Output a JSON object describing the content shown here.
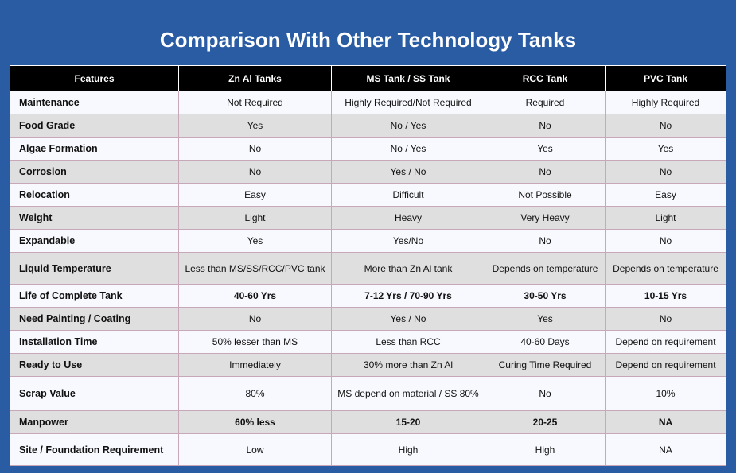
{
  "title": "Comparison With Other Technology Tanks",
  "headers": [
    "Features",
    "Zn Al Tanks",
    "MS Tank / SS Tank",
    "RCC Tank",
    "PVC Tank"
  ],
  "rows": [
    [
      "Maintenance",
      "Not Required",
      "Highly Required/Not Required",
      "Required",
      "Highly Required"
    ],
    [
      "Food Grade",
      "Yes",
      "No / Yes",
      "No",
      "No"
    ],
    [
      "Algae Formation",
      "No",
      "No / Yes",
      "Yes",
      "Yes"
    ],
    [
      "Corrosion",
      "No",
      "Yes / No",
      "No",
      "No"
    ],
    [
      "Relocation",
      "Easy",
      "Difficult",
      "Not Possible",
      "Easy"
    ],
    [
      "Weight",
      "Light",
      "Heavy",
      "Very Heavy",
      "Light"
    ],
    [
      "Expandable",
      "Yes",
      "Yes/No",
      "No",
      "No"
    ],
    [
      "Liquid Temperature",
      "Less than MS/SS/RCC/PVC tank",
      "More than Zn Al tank",
      "Depends on temperature",
      "Depends on temperature"
    ],
    [
      "Life of Complete Tank",
      "40-60 Yrs",
      "7-12 Yrs / 70-90 Yrs",
      "30-50 Yrs",
      "10-15 Yrs"
    ],
    [
      "Need Painting / Coating",
      "No",
      "Yes / No",
      "Yes",
      "No"
    ],
    [
      "Installation Time",
      "50% lesser than MS",
      "Less than RCC",
      "40-60 Days",
      "Depend on requirement"
    ],
    [
      "Ready to Use",
      "Immediately",
      "30% more than Zn Al",
      "Curing Time Required",
      "Depend on requirement"
    ],
    [
      "Scrap Value",
      "80%",
      "MS depend on material / SS 80%",
      "No",
      "10%"
    ],
    [
      "Manpower",
      "60% less",
      "15-20",
      "20-25",
      "NA"
    ],
    [
      "Site / Foundation Requirement",
      "Low",
      "High",
      "High",
      "NA"
    ]
  ]
}
